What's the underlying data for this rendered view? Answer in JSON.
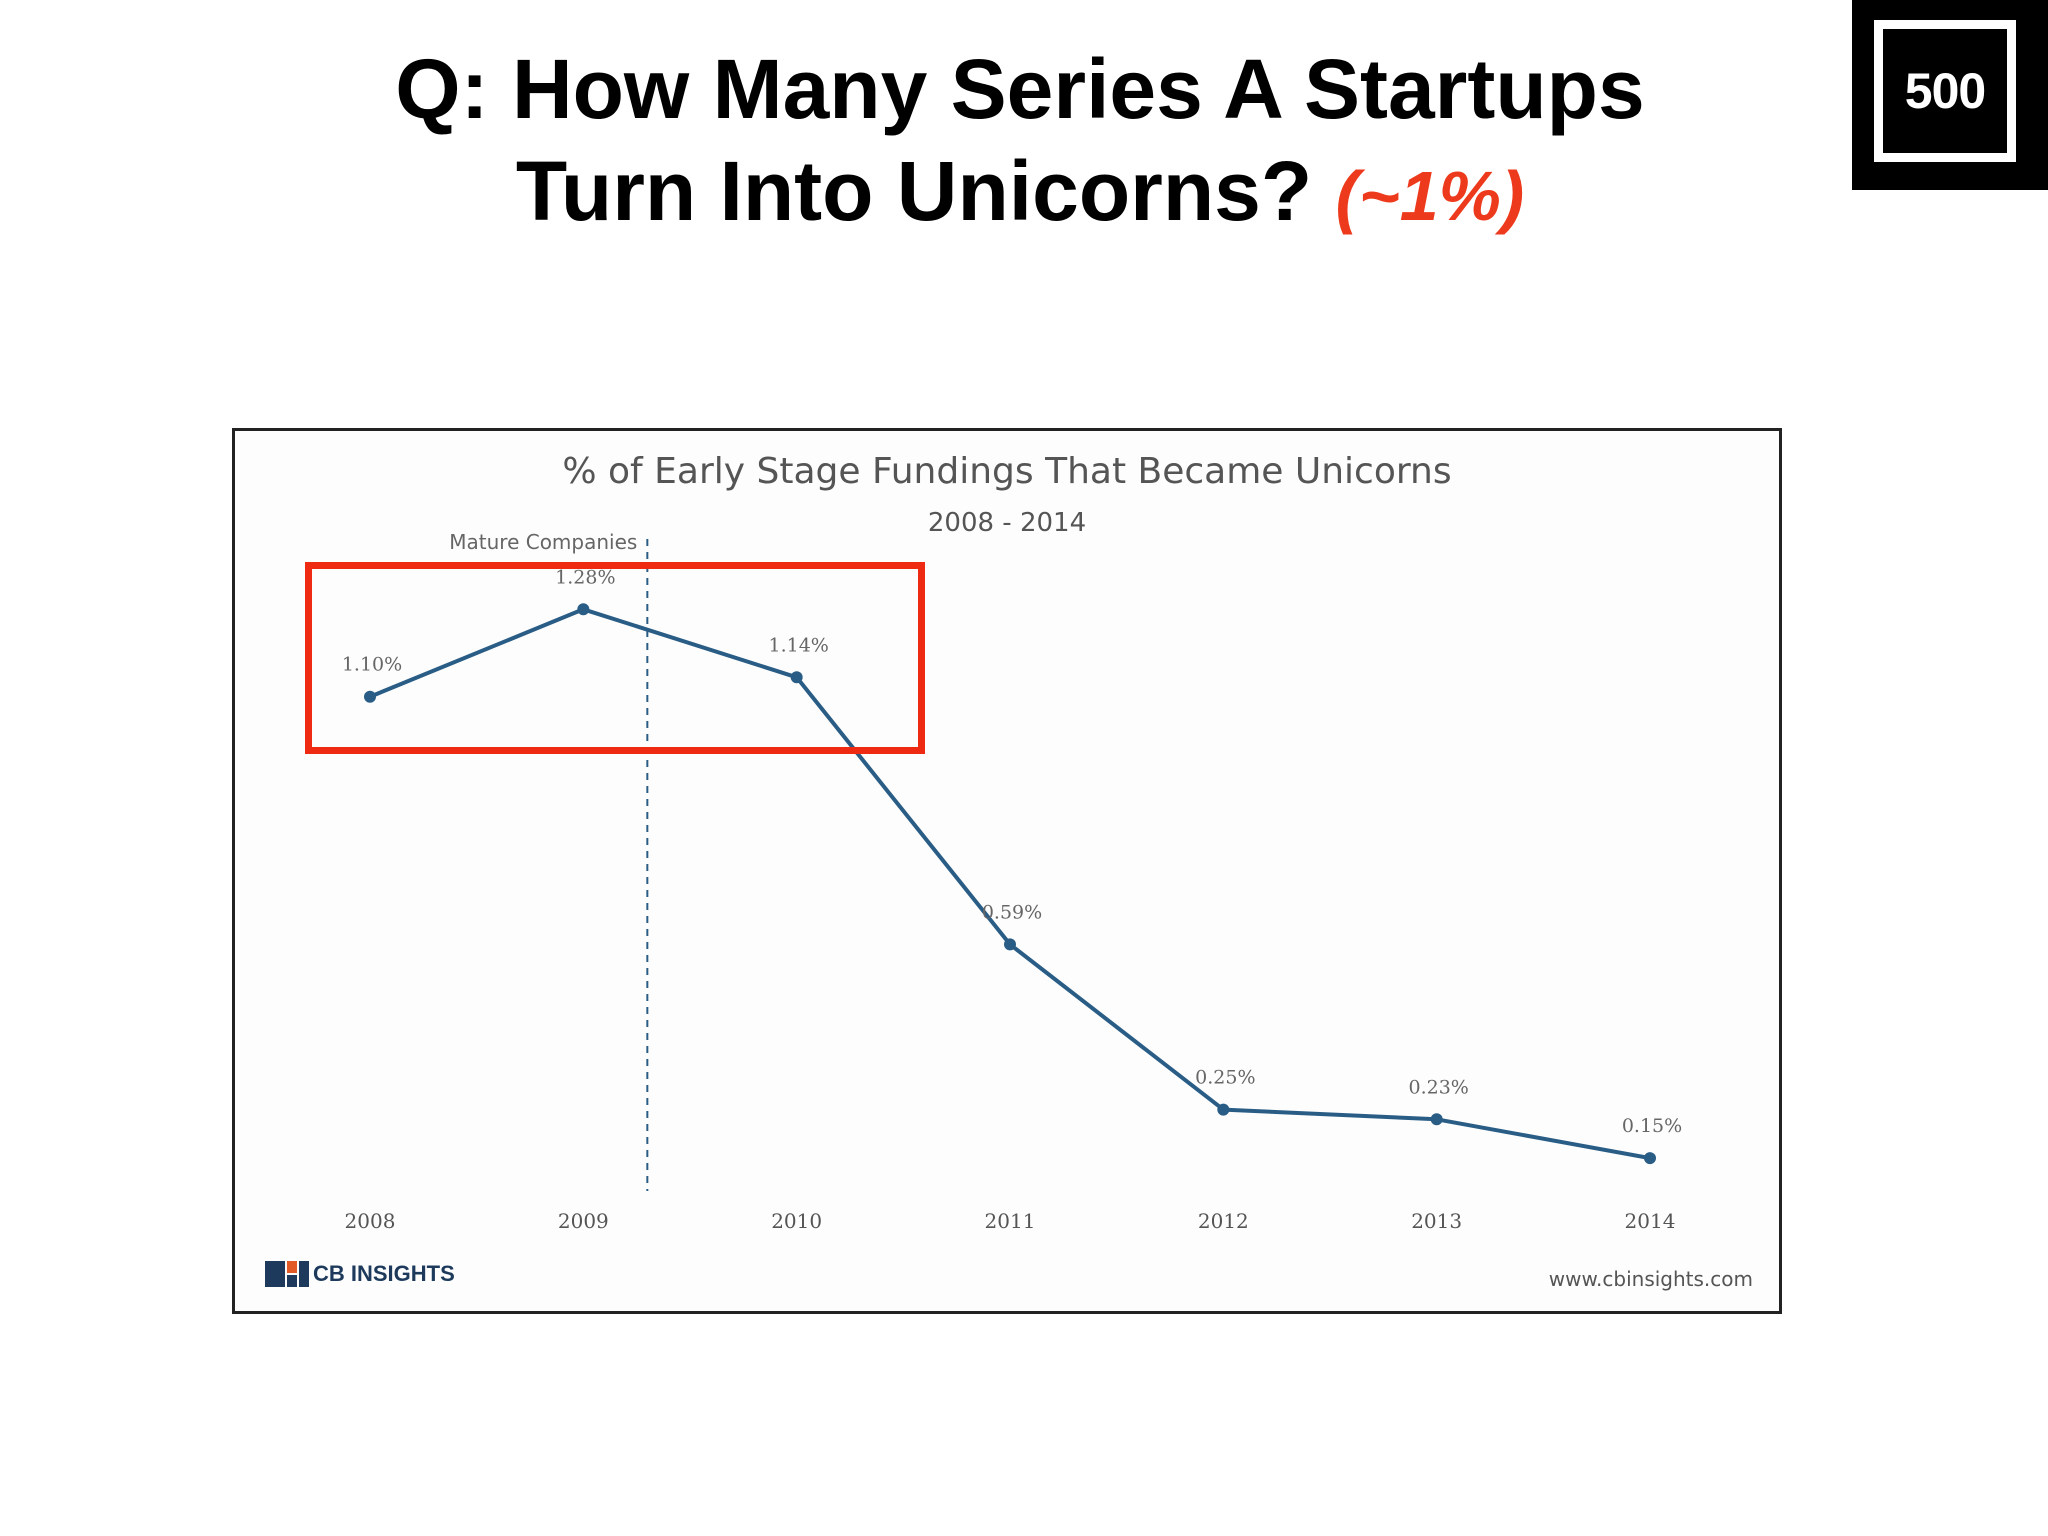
{
  "slide": {
    "title_line1": "Q: How Many Series A Startups",
    "title_line2": "Turn Into Unicorns?",
    "answer": "(~1%)",
    "answer_color": "#ee3a1c"
  },
  "logo": {
    "text": "500"
  },
  "chart_data": {
    "type": "line",
    "title": "% of Early Stage Fundings That Became Unicorns",
    "subtitle": "2008 - 2014",
    "categories": [
      "2008",
      "2009",
      "2010",
      "2011",
      "2012",
      "2013",
      "2014"
    ],
    "values": [
      1.1,
      1.28,
      1.14,
      0.59,
      0.25,
      0.23,
      0.15
    ],
    "data_labels": [
      "1.10%",
      "1.28%",
      "1.14%",
      "0.59%",
      "0.25%",
      "0.23%",
      "0.15%"
    ],
    "ylim": [
      0,
      1.4
    ],
    "grid": false,
    "line_color": "#2a5d86",
    "annotation": {
      "label": "Mature Companies",
      "position": "between 2009 and 2010",
      "style": "dashed vertical line"
    },
    "highlight_color": "#ee2a12",
    "highlighted_categories": [
      "2008",
      "2009",
      "2010"
    ],
    "source_logo": "CB INSIGHTS",
    "source_url": "www.cbinsights.com"
  }
}
